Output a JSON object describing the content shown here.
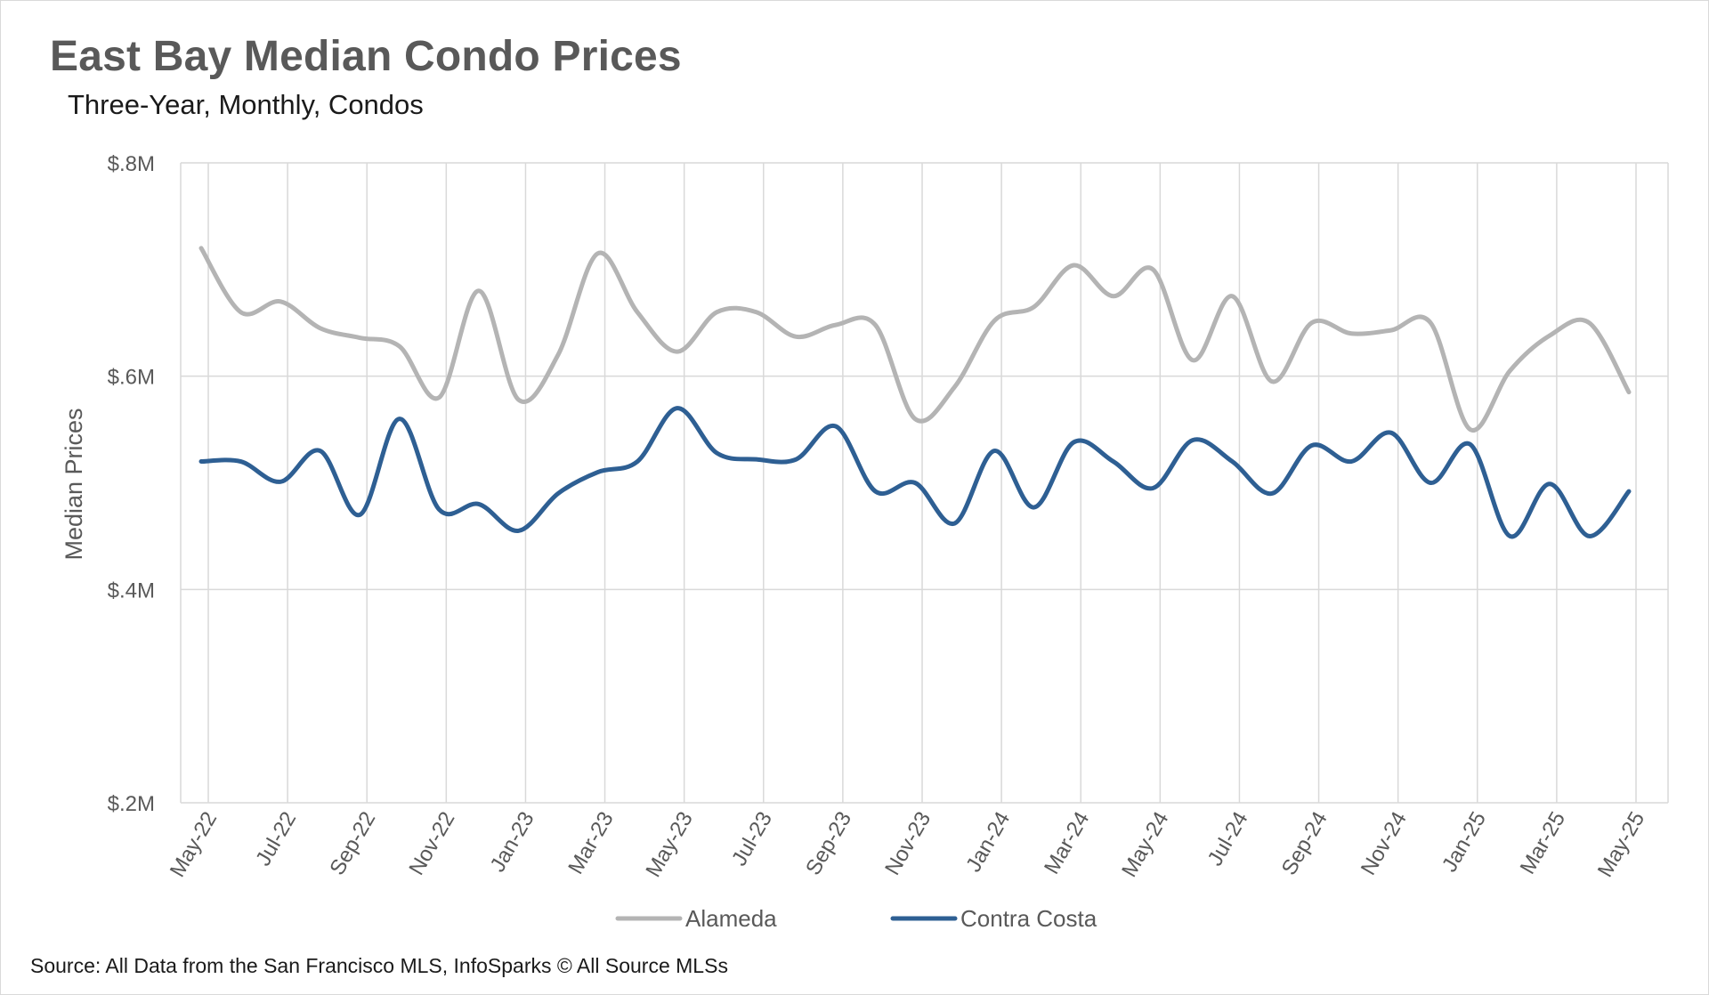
{
  "colors": {
    "alameda": "#b4b4b4",
    "contra_costa": "#2e5f93",
    "grid": "#d9d9d9",
    "axis_text": "#595959"
  },
  "chart_data": {
    "type": "line",
    "title": "East Bay Median Condo Prices",
    "subtitle": "Three-Year, Monthly, Condos",
    "ylabel": "Median Prices",
    "xlabel": "",
    "source": "Source: All Data from the San Francisco MLS, InfoSparks © All Source MLSs",
    "ylim": [
      200000,
      800000
    ],
    "yticks": [
      {
        "value": 800000,
        "label": "$.8M"
      },
      {
        "value": 600000,
        "label": "$.6M"
      },
      {
        "value": 400000,
        "label": "$.4M"
      },
      {
        "value": 200000,
        "label": "$.2M"
      }
    ],
    "x": [
      "May-22",
      "Jun-22",
      "Jul-22",
      "Aug-22",
      "Sep-22",
      "Oct-22",
      "Nov-22",
      "Dec-22",
      "Jan-23",
      "Feb-23",
      "Mar-23",
      "Apr-23",
      "May-23",
      "Jun-23",
      "Jul-23",
      "Aug-23",
      "Sep-23",
      "Oct-23",
      "Nov-23",
      "Dec-23",
      "Jan-24",
      "Feb-24",
      "Mar-24",
      "Apr-24",
      "May-24",
      "Jun-24",
      "Jul-24",
      "Aug-24",
      "Sep-24",
      "Oct-24",
      "Nov-24",
      "Dec-24",
      "Jan-25",
      "Feb-25",
      "Mar-25",
      "Apr-25",
      "May-25"
    ],
    "x_tick_labels": [
      "May-22",
      "",
      "Jul-22",
      "",
      "Sep-22",
      "",
      "Nov-22",
      "",
      "Jan-23",
      "",
      "Mar-23",
      "",
      "May-23",
      "",
      "Jul-23",
      "",
      "Sep-23",
      "",
      "Nov-23",
      "",
      "Jan-24",
      "",
      "Mar-24",
      "",
      "May-24",
      "",
      "Jul-24",
      "",
      "Sep-24",
      "",
      "Nov-24",
      "",
      "Jan-25",
      "",
      "Mar-25",
      "",
      "May-25"
    ],
    "grid": true,
    "legend": "bottom-center",
    "series": [
      {
        "name": "Alameda",
        "values": [
          720000,
          660000,
          670000,
          645000,
          636000,
          628000,
          580000,
          680000,
          578000,
          620000,
          715000,
          660000,
          623000,
          660000,
          660000,
          637000,
          648000,
          648000,
          560000,
          590000,
          652000,
          665000,
          704000,
          675000,
          700000,
          615000,
          675000,
          595000,
          650000,
          640000,
          643000,
          650000,
          550000,
          605000,
          638000,
          650000,
          585000
        ]
      },
      {
        "name": "Contra Costa",
        "values": [
          520000,
          520000,
          501000,
          530000,
          470000,
          560000,
          475000,
          480000,
          455000,
          490000,
          510000,
          520000,
          570000,
          528000,
          522000,
          522000,
          553000,
          492000,
          500000,
          462000,
          530000,
          477000,
          538000,
          520000,
          495000,
          540000,
          520000,
          490000,
          535000,
          520000,
          547000,
          500000,
          536000,
          450000,
          499000,
          450000,
          492000
        ]
      }
    ]
  }
}
